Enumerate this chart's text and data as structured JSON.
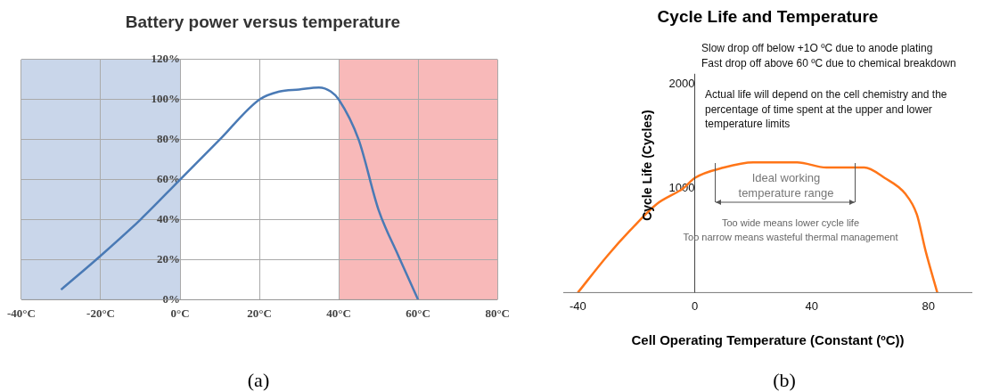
{
  "chart_data": [
    {
      "type": "line",
      "title": "Battery power versus temperature",
      "x": [
        -30,
        -20,
        -10,
        0,
        10,
        20,
        25,
        30,
        35,
        38,
        40,
        45,
        50,
        55,
        60
      ],
      "series": [
        {
          "color": "#4a7ab5",
          "values": [
            5,
            22,
            40,
            60,
            80,
            100,
            104,
            105,
            106,
            104,
            100,
            80,
            45,
            22,
            0
          ]
        }
      ],
      "xlim": [
        -40,
        80
      ],
      "xticks": [
        {
          "value": -40,
          "label": "-40°C"
        },
        {
          "value": -20,
          "label": "-20°C"
        },
        {
          "value": 0,
          "label": "0°C"
        },
        {
          "value": 20,
          "label": "20°C"
        },
        {
          "value": 40,
          "label": "40°C"
        },
        {
          "value": 60,
          "label": "60°C"
        },
        {
          "value": 80,
          "label": "80°C"
        }
      ],
      "ylim": [
        0,
        120
      ],
      "yticks": [
        {
          "value": 0,
          "label": "0%"
        },
        {
          "value": 20,
          "label": "20%"
        },
        {
          "value": 40,
          "label": "40%"
        },
        {
          "value": 60,
          "label": "60%"
        },
        {
          "value": 80,
          "label": "80%"
        },
        {
          "value": 100,
          "label": "100%"
        },
        {
          "value": 120,
          "label": "120%"
        }
      ],
      "bands": [
        {
          "axis": "x",
          "from": -40,
          "to": 0,
          "color": "#c9d6ea"
        },
        {
          "axis": "x",
          "from": 40,
          "to": 80,
          "color": "#f8b9b9"
        }
      ],
      "grid": true,
      "legend": false,
      "marker": "none",
      "line_style": "solid",
      "annotations": [
        "(a)"
      ]
    },
    {
      "type": "line",
      "title": "Cycle Life and Temperature",
      "xlabel": "Cell Operating Temperature (Constant (ºC))",
      "ylabel": "Cycle Life (Cycles)",
      "x": [
        -40,
        -30,
        -22,
        -13,
        -4,
        0,
        10,
        20,
        29,
        35,
        45,
        58,
        65,
        72,
        76,
        79,
        83
      ],
      "series": [
        {
          "color": "#ff7518",
          "values": [
            0,
            350,
            600,
            850,
            1000,
            1100,
            1200,
            1250,
            1250,
            1250,
            1200,
            1200,
            1100,
            950,
            750,
            400,
            0
          ]
        }
      ],
      "xlim": [
        -45,
        95
      ],
      "xticks": [
        -40,
        0,
        40,
        80
      ],
      "ylim": [
        0,
        2100
      ],
      "yticks": [
        1000,
        2000
      ],
      "grid": false,
      "legend": false,
      "marker": "none",
      "line_style": "solid",
      "annotations": [
        "Slow drop off below +1O ºC due to anode plating",
        "Fast drop off above 60 ºC due to chemical breakdown",
        "Actual life will depend on the cell chemistry and the percentage of time spent at the upper and lower temperature limits",
        "Ideal working temperature range",
        "Too wide means lower cycle life",
        "Too narrow means wasteful thermal management",
        "(b)"
      ]
    }
  ]
}
